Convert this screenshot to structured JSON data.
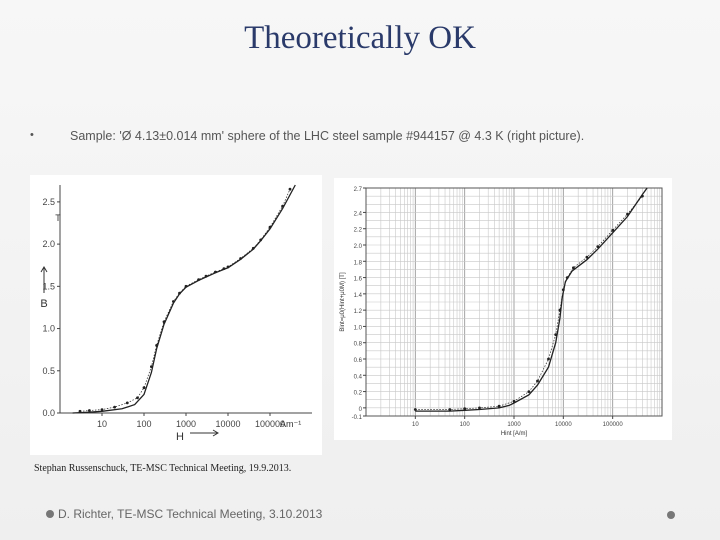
{
  "slide": {
    "title": "Theoretically OK",
    "bullet_marker": "•",
    "bullet_text": "Sample: 'Ø 4.13±0.014 mm' sphere of the LHC steel sample #944157 @ 4.3 K (right picture).",
    "citation": "Stephan Russenschuck, TE-MSC Technical Meeting, 19.9.2013.",
    "footer": "D. Richter, TE-MSC Technical Meeting, 3.10.2013",
    "colors": {
      "title": "#2a3a6a",
      "text": "#555555",
      "curve": "#222222",
      "grid": "#bbbbbb"
    }
  },
  "chart_data": [
    {
      "type": "line",
      "title": "",
      "xlabel": "H",
      "x_unit_label": "Am⁻¹",
      "ylabel": "B",
      "y_unit_label": "T",
      "x_scale": "log",
      "xlim": [
        1,
        1000000
      ],
      "ylim": [
        0,
        2.7
      ],
      "x_ticks": [
        10,
        100,
        1000,
        10000,
        100000
      ],
      "x_tick_labels": [
        "10",
        "100",
        "1000",
        "10000",
        "100000"
      ],
      "y_ticks": [
        0,
        0.5,
        1.0,
        1.5,
        2.0,
        2.5
      ],
      "y_tick_labels": [
        "0.0",
        "0.5",
        "1.0",
        "1.5",
        "2.0",
        "2.5"
      ],
      "series": [
        {
          "style": "points",
          "points": [
            [
              3,
              0.02
            ],
            [
              5,
              0.03
            ],
            [
              10,
              0.04
            ],
            [
              20,
              0.07
            ],
            [
              40,
              0.12
            ],
            [
              70,
              0.18
            ],
            [
              100,
              0.3
            ],
            [
              150,
              0.55
            ],
            [
              200,
              0.8
            ],
            [
              300,
              1.08
            ],
            [
              500,
              1.32
            ],
            [
              700,
              1.42
            ],
            [
              1000,
              1.5
            ],
            [
              2000,
              1.58
            ],
            [
              3000,
              1.62
            ],
            [
              5000,
              1.67
            ],
            [
              8000,
              1.71
            ],
            [
              10000,
              1.73
            ],
            [
              20000,
              1.83
            ],
            [
              40000,
              1.95
            ],
            [
              60000,
              2.05
            ],
            [
              100000,
              2.2
            ],
            [
              200000,
              2.45
            ],
            [
              300000,
              2.65
            ]
          ]
        },
        {
          "style": "line",
          "points": [
            [
              2,
              0.0
            ],
            [
              5,
              0.01
            ],
            [
              10,
              0.02
            ],
            [
              30,
              0.05
            ],
            [
              60,
              0.1
            ],
            [
              100,
              0.22
            ],
            [
              150,
              0.48
            ],
            [
              200,
              0.76
            ],
            [
              300,
              1.05
            ],
            [
              500,
              1.3
            ],
            [
              700,
              1.41
            ],
            [
              1000,
              1.49
            ],
            [
              2000,
              1.57
            ],
            [
              3000,
              1.61
            ],
            [
              5000,
              1.66
            ],
            [
              8000,
              1.7
            ],
            [
              10000,
              1.72
            ],
            [
              20000,
              1.82
            ],
            [
              40000,
              1.94
            ],
            [
              60000,
              2.04
            ],
            [
              100000,
              2.18
            ],
            [
              200000,
              2.42
            ],
            [
              400000,
              2.7
            ]
          ]
        }
      ]
    },
    {
      "type": "line",
      "title": "",
      "xlabel": "Hint [A/m]",
      "ylabel": "Bint=μ0(Hint+μ0M) [T]",
      "x_scale": "log",
      "xlim": [
        1,
        1000000
      ],
      "ylim": [
        -0.1,
        2.7
      ],
      "x_ticks": [
        10,
        100,
        1000,
        10000,
        100000
      ],
      "x_tick_labels": [
        "10",
        "100",
        "1000",
        "10000",
        "100000"
      ],
      "y_ticks": [
        -0.1,
        0,
        0.2,
        0.4,
        0.6,
        0.8,
        1.0,
        1.2,
        1.4,
        1.6,
        1.8,
        2.0,
        2.2,
        2.4,
        2.7
      ],
      "y_tick_labels": [
        "-0.1",
        "0",
        "0.2",
        "0.4",
        "0.6",
        "0.8",
        "1.0",
        "1.2",
        "1.4",
        "1.6",
        "1.8",
        "2.0",
        "2.2",
        "2.4",
        "2.7"
      ],
      "series": [
        {
          "style": "line",
          "points": [
            [
              10,
              -0.04
            ],
            [
              50,
              -0.04
            ],
            [
              100,
              -0.03
            ],
            [
              200,
              -0.02
            ],
            [
              500,
              0.0
            ],
            [
              800,
              0.03
            ],
            [
              1000,
              0.06
            ],
            [
              2000,
              0.16
            ],
            [
              3000,
              0.28
            ],
            [
              5000,
              0.5
            ],
            [
              7000,
              0.8
            ],
            [
              8500,
              1.1
            ],
            [
              9500,
              1.35
            ],
            [
              11000,
              1.55
            ],
            [
              15000,
              1.68
            ],
            [
              30000,
              1.82
            ],
            [
              50000,
              1.95
            ],
            [
              100000,
              2.15
            ],
            [
              200000,
              2.35
            ],
            [
              400000,
              2.62
            ],
            [
              500000,
              2.7
            ]
          ]
        },
        {
          "style": "points",
          "points": [
            [
              10,
              -0.02
            ],
            [
              50,
              -0.02
            ],
            [
              100,
              -0.01
            ],
            [
              200,
              0.0
            ],
            [
              500,
              0.02
            ],
            [
              1000,
              0.08
            ],
            [
              2000,
              0.2
            ],
            [
              3000,
              0.33
            ],
            [
              5000,
              0.6
            ],
            [
              7000,
              0.9
            ],
            [
              8500,
              1.2
            ],
            [
              10000,
              1.45
            ],
            [
              12000,
              1.6
            ],
            [
              16000,
              1.72
            ],
            [
              30000,
              1.85
            ],
            [
              50000,
              1.98
            ],
            [
              100000,
              2.18
            ],
            [
              200000,
              2.38
            ],
            [
              400000,
              2.6
            ]
          ]
        }
      ]
    }
  ]
}
